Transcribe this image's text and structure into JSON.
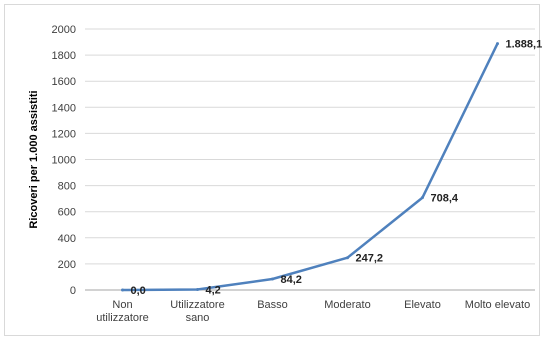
{
  "chart_data": {
    "type": "line",
    "ylabel": "Ricoveri per 1.000 assistiti",
    "xlabel": "",
    "title": "",
    "ylim": [
      0,
      2000
    ],
    "ytick_step": 200,
    "grid": true,
    "legend": "none",
    "categories": [
      [
        "Non",
        "utilizzatore"
      ],
      [
        "Utilizzatore",
        "sano"
      ],
      [
        "Basso"
      ],
      [
        "Moderato"
      ],
      [
        "Elevato"
      ],
      [
        "Molto elevato"
      ]
    ],
    "series": [
      {
        "values": [
          0.0,
          4.2,
          84.2,
          247.2,
          708.4,
          1888.1
        ],
        "data_labels": [
          "0,0",
          "4,2",
          "84,2",
          "247,2",
          "708,4",
          "1.888,1"
        ],
        "color": "#4f81bd"
      }
    ]
  }
}
